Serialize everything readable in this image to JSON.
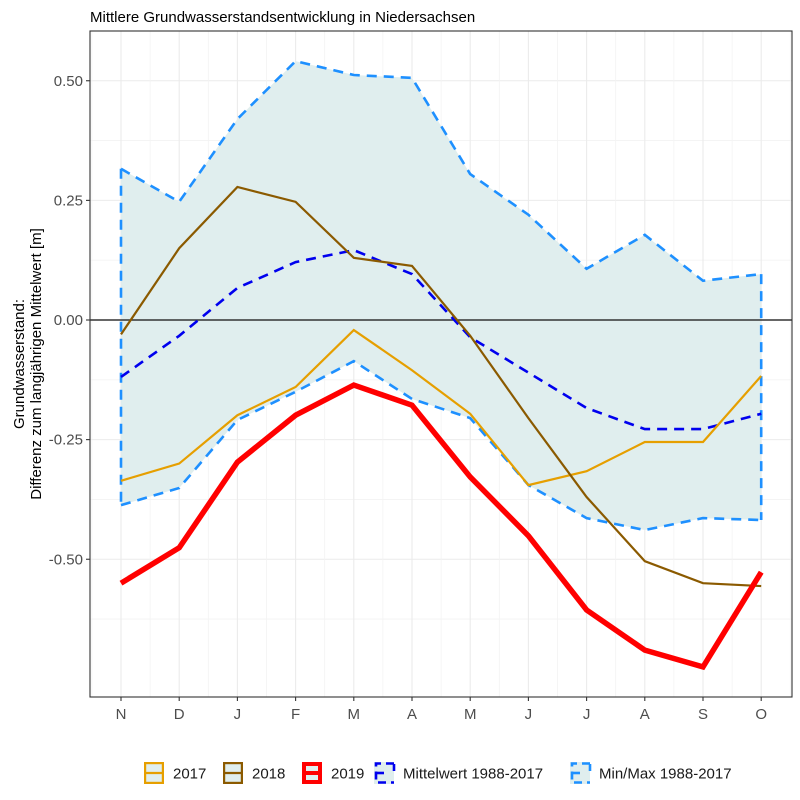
{
  "chart_data": {
    "type": "line",
    "title": "Mittlere Grundwasserstandsentwicklung in Niedersachsen",
    "xlabel": "",
    "ylabel": [
      "Grundwasserstand:",
      "Differenz zum langjährigen Mittelwert [m]"
    ],
    "categories": [
      "N",
      "D",
      "J",
      "F",
      "M",
      "A",
      "M",
      "J",
      "J",
      "A",
      "S",
      "O"
    ],
    "ylim": [
      -0.78,
      0.61
    ],
    "yticks": [
      0.5,
      0.25,
      0.0,
      -0.25,
      -0.5
    ],
    "ytick_labels": [
      "0.50",
      "0.25",
      "0.00",
      "-0.25",
      "-0.50"
    ],
    "grid": true,
    "zero_line": true,
    "legend_position": "bottom",
    "ribbon": {
      "name": "Min/Max 1988-2017",
      "fill": "#e0eeee",
      "max": [
        0.316,
        0.247,
        0.42,
        0.541,
        0.512,
        0.506,
        0.305,
        0.22,
        0.107,
        0.178,
        0.082,
        0.096
      ],
      "min": [
        -0.387,
        -0.351,
        -0.209,
        -0.15,
        -0.086,
        -0.165,
        -0.205,
        -0.345,
        -0.414,
        -0.439,
        -0.414,
        -0.418
      ]
    },
    "series": [
      {
        "name": "2017",
        "color": "#e69f00",
        "style": "solid",
        "width": 2.2,
        "values": [
          -0.336,
          -0.3,
          -0.199,
          -0.14,
          -0.021,
          -0.105,
          -0.196,
          -0.345,
          -0.316,
          -0.255,
          -0.255,
          -0.117
        ]
      },
      {
        "name": "2018",
        "color": "#8b5a00",
        "style": "solid",
        "width": 2.2,
        "values": [
          -0.03,
          0.15,
          0.278,
          0.247,
          0.13,
          0.113,
          -0.033,
          -0.205,
          -0.37,
          -0.504,
          -0.55,
          -0.556
        ]
      },
      {
        "name": "2019",
        "color": "#ff0000",
        "style": "solid",
        "width": 5.5,
        "values": [
          -0.55,
          -0.476,
          -0.297,
          -0.199,
          -0.136,
          -0.178,
          -0.328,
          -0.451,
          -0.606,
          -0.69,
          -0.725,
          -0.527
        ]
      },
      {
        "name": "Mittelwert 1988-2017",
        "color": "#0000ee",
        "style": "dashed",
        "width": 2.6,
        "values": [
          -0.119,
          -0.033,
          0.067,
          0.121,
          0.146,
          0.096,
          -0.036,
          -0.11,
          -0.184,
          -0.228,
          -0.228,
          -0.196
        ]
      },
      {
        "name": "Min/Max 1988-2017",
        "color": "#1e90ff",
        "style": "dashed",
        "width": 2.6,
        "values": null
      }
    ]
  }
}
